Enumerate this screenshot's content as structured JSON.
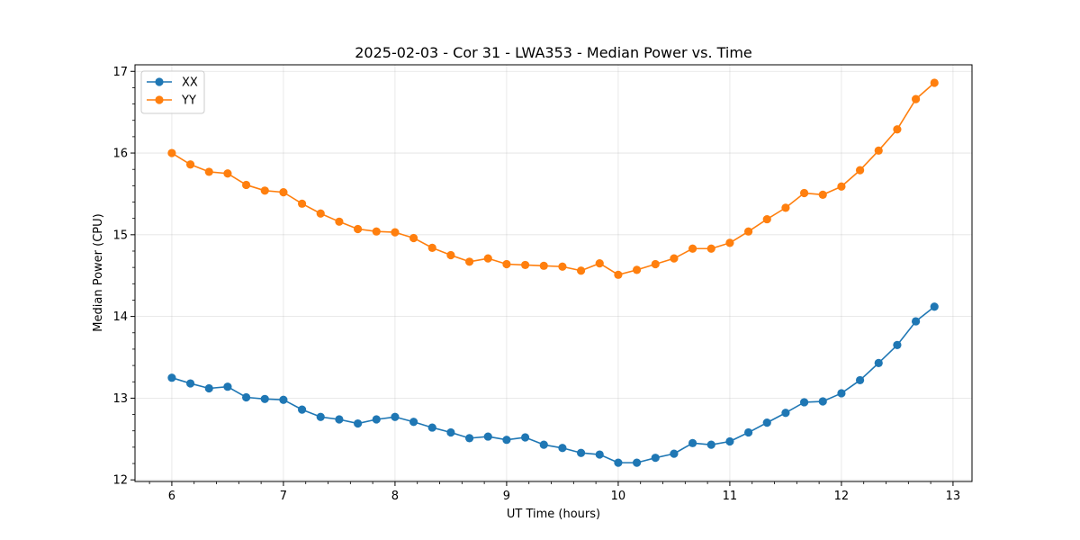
{
  "chart_data": {
    "type": "line",
    "title": "2025-02-03 - Cor 31 - LWA353 - Median Power vs. Time",
    "xlabel": "UT Time (hours)",
    "ylabel": "Median Power (CPU)",
    "xlim": [
      5.67,
      13.17
    ],
    "ylim": [
      11.98,
      17.08
    ],
    "xticks": [
      6,
      7,
      8,
      9,
      10,
      11,
      12,
      13
    ],
    "xtick_labels": [
      "6",
      "7",
      "8",
      "9",
      "10",
      "11",
      "12",
      "13"
    ],
    "yticks": [
      12,
      13,
      14,
      15,
      16,
      17
    ],
    "ytick_labels": [
      "12",
      "13",
      "14",
      "15",
      "16",
      "17"
    ],
    "grid": true,
    "legend_position": "top-left",
    "x": [
      6.0,
      6.1667,
      6.3333,
      6.5,
      6.6667,
      6.8333,
      7.0,
      7.1667,
      7.3333,
      7.5,
      7.6667,
      7.8333,
      8.0,
      8.1667,
      8.3333,
      8.5,
      8.6667,
      8.8333,
      9.0,
      9.1667,
      9.3333,
      9.5,
      9.6667,
      9.8333,
      10.0,
      10.1667,
      10.3333,
      10.5,
      10.6667,
      10.8333,
      11.0,
      11.1667,
      11.3333,
      11.5,
      11.6667,
      11.8333,
      12.0,
      12.1667,
      12.3333,
      12.5,
      12.6667,
      12.8333
    ],
    "series": [
      {
        "name": "XX",
        "color": "#1f77b4",
        "values": [
          13.25,
          13.18,
          13.12,
          13.14,
          13.01,
          12.99,
          12.98,
          12.86,
          12.77,
          12.74,
          12.69,
          12.74,
          12.77,
          12.71,
          12.64,
          12.58,
          12.51,
          12.53,
          12.49,
          12.52,
          12.43,
          12.39,
          12.33,
          12.31,
          12.21,
          12.21,
          12.27,
          12.32,
          12.45,
          12.43,
          12.47,
          12.58,
          12.7,
          12.82,
          12.95,
          12.96,
          13.06,
          13.22,
          13.43,
          13.65,
          13.94,
          14.12
        ]
      },
      {
        "name": "YY",
        "color": "#ff7f0e",
        "values": [
          16.0,
          15.86,
          15.77,
          15.75,
          15.61,
          15.54,
          15.52,
          15.38,
          15.26,
          15.16,
          15.07,
          15.04,
          15.03,
          14.96,
          14.84,
          14.75,
          14.67,
          14.71,
          14.64,
          14.63,
          14.62,
          14.61,
          14.56,
          14.65,
          14.51,
          14.57,
          14.64,
          14.71,
          14.83,
          14.83,
          14.9,
          15.04,
          15.19,
          15.33,
          15.51,
          15.49,
          15.59,
          15.79,
          16.03,
          16.29,
          16.66,
          16.86
        ]
      }
    ]
  }
}
